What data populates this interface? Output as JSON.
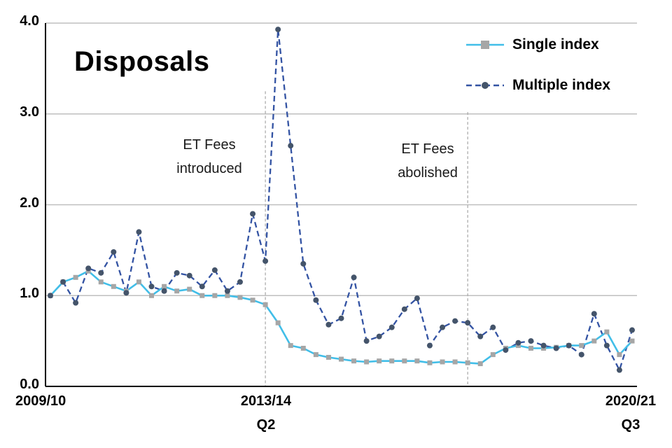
{
  "chart_data": {
    "type": "line",
    "title": "Disposals",
    "grid_color": "#BFBFBF",
    "axis_color": "#000000",
    "vline_color": "#A6A6A6",
    "y_axis": {
      "ylim": [
        0,
        4
      ],
      "ticks": [
        0,
        1,
        2,
        3,
        4
      ],
      "tick_labels": [
        "0.0",
        "1.0",
        "2.0",
        "3.0",
        "4.0"
      ]
    },
    "x_axis": {
      "ticks": [
        {
          "line1": "2009/10",
          "line2": ""
        },
        {
          "line1": "2013/14",
          "line2": "Q2"
        },
        {
          "line1": "2020/21",
          "line2": "Q3"
        }
      ]
    },
    "series": [
      {
        "name": "Single index",
        "color": "#41BEE8",
        "marker": "square",
        "marker_color": "#A6A6A6",
        "dash": "solid",
        "values": [
          1.0,
          1.15,
          1.2,
          1.27,
          1.15,
          1.1,
          1.05,
          1.15,
          1.0,
          1.1,
          1.05,
          1.07,
          1.0,
          1.0,
          1.0,
          0.98,
          0.95,
          0.9,
          0.7,
          0.45,
          0.42,
          0.35,
          0.32,
          0.3,
          0.28,
          0.27,
          0.28,
          0.28,
          0.28,
          0.28,
          0.26,
          0.27,
          0.27,
          0.26,
          0.25,
          0.35,
          0.42,
          0.45,
          0.42,
          0.42,
          0.43,
          0.45,
          0.45,
          0.5,
          0.6,
          0.35,
          0.5
        ]
      },
      {
        "name": "Multiple index",
        "color": "#3353A3",
        "marker": "circle",
        "marker_color": "#44546A",
        "dash": "dashed",
        "values": [
          1.0,
          1.15,
          0.92,
          1.3,
          1.25,
          1.48,
          1.03,
          1.7,
          1.1,
          1.05,
          1.25,
          1.22,
          1.1,
          1.28,
          1.05,
          1.15,
          1.9,
          1.38,
          3.93,
          2.65,
          1.35,
          0.95,
          0.68,
          0.75,
          1.2,
          0.5,
          0.55,
          0.65,
          0.85,
          0.97,
          0.45,
          0.65,
          0.72,
          0.7,
          0.55,
          0.65,
          0.4,
          0.48,
          0.5,
          0.45,
          0.42,
          0.45,
          0.35,
          0.8,
          0.45,
          0.18,
          0.62
        ]
      }
    ],
    "annotations": [
      {
        "line1": "ET Fees",
        "line2": "introduced",
        "x_index": 17,
        "vline_top": 3.25
      },
      {
        "line1": "ET Fees",
        "line2": "abolished",
        "x_index": 33,
        "vline_top": 3.02
      }
    ]
  }
}
